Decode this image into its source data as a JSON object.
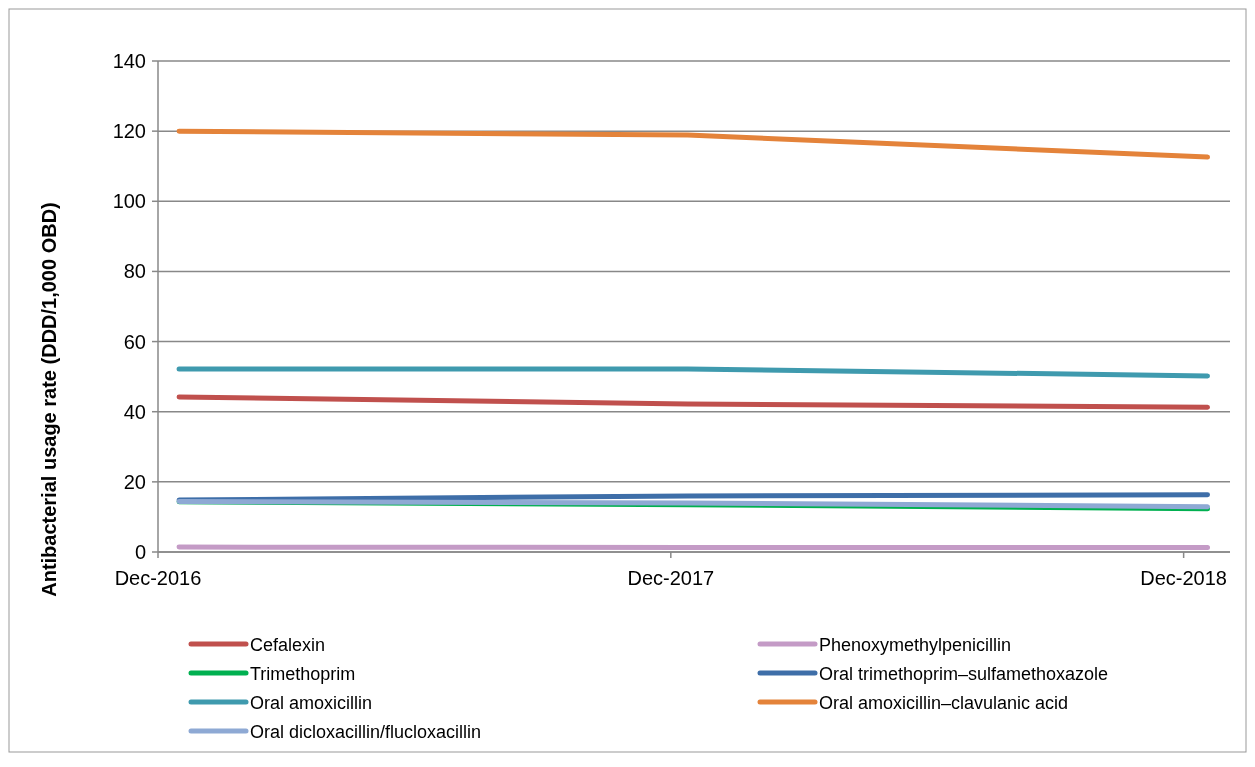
{
  "chart_data": {
    "type": "line",
    "ylabel": "Antibacterial usage rate (DDD/1,000 OBD)",
    "x": [
      "2016-12-16",
      "2017-12-13",
      "2018-12-18"
    ],
    "xlim": [
      "2016-12-01",
      "2019-01-03"
    ],
    "xticks": [
      {
        "value": "2016-12-01",
        "label": "Dec-2016"
      },
      {
        "value": "2017-12-01",
        "label": "Dec-2017"
      },
      {
        "value": "2018-12-01",
        "label": "Dec-2018"
      }
    ],
    "ylim": [
      0,
      140
    ],
    "yticks": [
      0,
      20,
      40,
      60,
      80,
      100,
      120,
      140
    ],
    "grid": "y",
    "legend": "bottom",
    "marker": "none",
    "line_style": "solid",
    "series": [
      {
        "name": "Cefalexin",
        "color": "#c0504d",
        "values": [
          44.2,
          42.2,
          41.3
        ]
      },
      {
        "name": "Phenoxymethylpenicillin",
        "color": "#c49bc6",
        "values": [
          1.4,
          1.3,
          1.3
        ]
      },
      {
        "name": "Trimethoprim",
        "color": "#00b050",
        "values": [
          14.3,
          13.5,
          12.3
        ]
      },
      {
        "name": "Oral trimethoprim–sulfamethoxazole",
        "color": "#3e6ea8",
        "values": [
          14.8,
          16.0,
          16.3
        ]
      },
      {
        "name": "Oral amoxicillin",
        "color": "#3f9aae",
        "values": [
          52.2,
          52.2,
          50.2
        ]
      },
      {
        "name": "Oral amoxicillin–clavulanic acid",
        "color": "#e4833a",
        "values": [
          120.0,
          118.9,
          112.6
        ]
      },
      {
        "name": "Oral dicloxacillin/flucloxacillin",
        "color": "#8ea9d4",
        "values": [
          14.4,
          14.0,
          12.9
        ]
      }
    ]
  }
}
